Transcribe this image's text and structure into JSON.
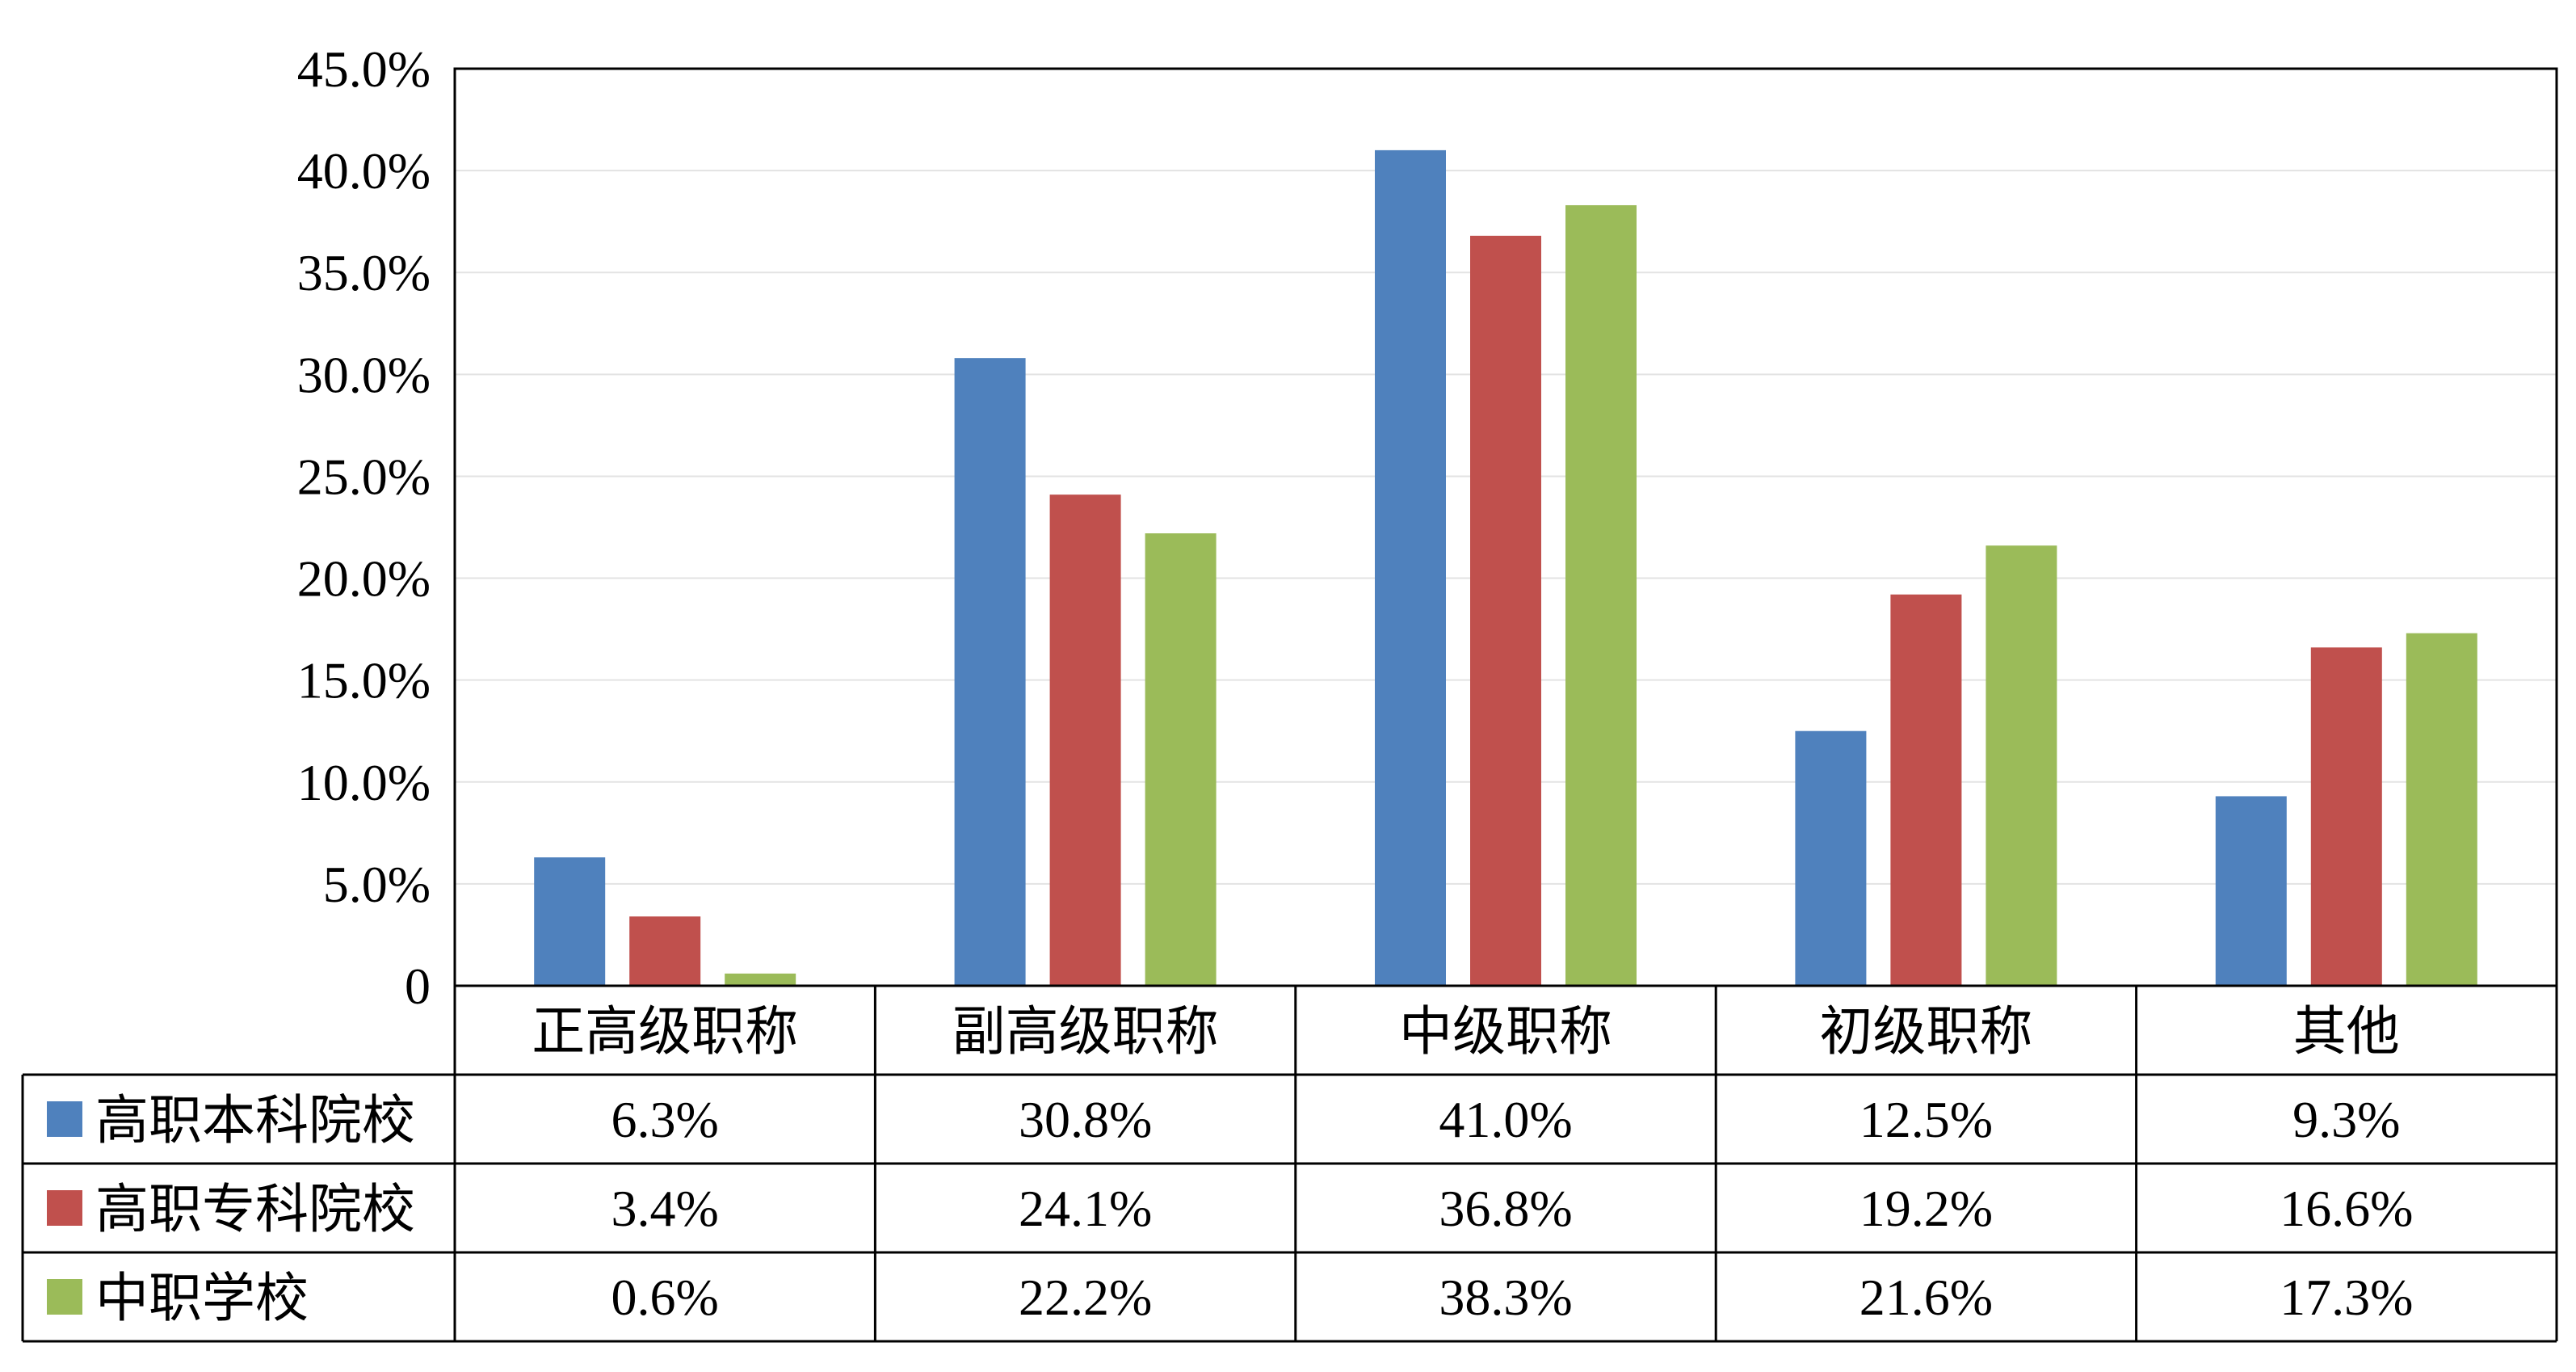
{
  "chart_data": {
    "type": "bar",
    "categories": [
      "正高级职称",
      "副高级职称",
      "中级职称",
      "初级职称",
      "其他"
    ],
    "series": [
      {
        "name": "高职本科院校",
        "color": "#4f81bd",
        "values": [
          6.3,
          30.8,
          41.0,
          12.5,
          9.3
        ],
        "labels": [
          "6.3%",
          "30.8%",
          "41.0%",
          "12.5%",
          "9.3%"
        ]
      },
      {
        "name": "高职专科院校",
        "color": "#c0504d",
        "values": [
          3.4,
          24.1,
          36.8,
          19.2,
          16.6
        ],
        "labels": [
          "3.4%",
          "24.1%",
          "36.8%",
          "19.2%",
          "16.6%"
        ]
      },
      {
        "name": "中职学校",
        "color": "#9bbb59",
        "values": [
          0.6,
          22.2,
          38.3,
          21.6,
          17.3
        ],
        "labels": [
          "0.6%",
          "22.2%",
          "38.3%",
          "21.6%",
          "17.3%"
        ]
      }
    ],
    "ylim": [
      0,
      45
    ],
    "yticks": [
      "0",
      "5.0%",
      "10.0%",
      "15.0%",
      "20.0%",
      "25.0%",
      "30.0%",
      "35.0%",
      "40.0%",
      "45.0%"
    ],
    "grid": true,
    "legend": "data-table-left",
    "title": "",
    "xlabel": "",
    "ylabel": ""
  }
}
